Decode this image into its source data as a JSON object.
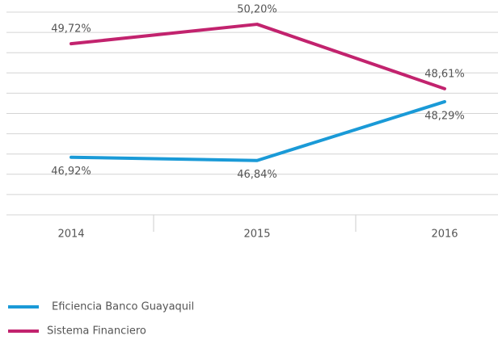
{
  "chart_data": {
    "type": "line",
    "categories": [
      "2014",
      "2015",
      "2016"
    ],
    "series": [
      {
        "name": "Eficiencia Banco Guayaquil",
        "color": "#1a9ad7",
        "values": [
          46.92,
          46.84,
          48.29
        ],
        "value_labels": [
          "46,92%",
          "46,84%",
          "48,29%"
        ]
      },
      {
        "name": "Sistema Financiero",
        "color": "#c2236e",
        "values": [
          49.72,
          50.2,
          48.61
        ],
        "value_labels": [
          "49,72%",
          "50,20%",
          "48,61%"
        ]
      }
    ],
    "ylim": [
      45.5,
      50.5
    ],
    "yticks": [
      45.5,
      46,
      46.5,
      47,
      47.5,
      48,
      48.5,
      49,
      49.5,
      50,
      50.5
    ],
    "grid": true,
    "legend": "bottom-left"
  }
}
